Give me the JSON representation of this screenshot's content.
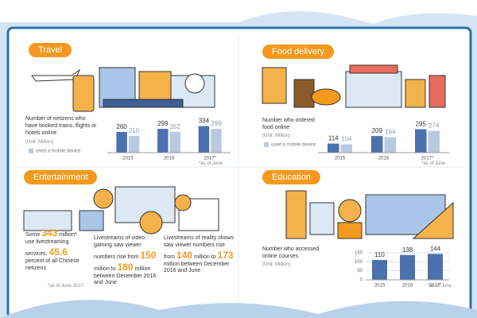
{
  "panels": {
    "travel": "Travel",
    "food": "Food delivery",
    "entertainment": "Entertainment",
    "education": "Education"
  },
  "entertainment": {
    "facts": [
      {
        "parts": [
          "Some",
          "343",
          "million*",
          "use livestreaming services,",
          "45.6",
          "percent of all Chinese netizens"
        ],
        "note": "*as of June 2017"
      },
      {
        "parts": [
          "Livestreams of video gaming saw viewer numbers rise from",
          "150",
          "million to",
          "180",
          "million between December 2016 and June"
        ]
      },
      {
        "parts": [
          "Livestreams of reality shows saw viewer numbers rise from",
          "140",
          "million to",
          "173",
          "million between December 2016 and June"
        ]
      }
    ]
  },
  "chart_data": [
    {
      "type": "bar",
      "title": "Number of netizens who have booked trains, flights or hotels online",
      "subtitle": "(Unit: Million)",
      "note": "*as of June",
      "categories": [
        "2015",
        "2016",
        "2017*"
      ],
      "ylim": [
        0,
        400
      ],
      "series": [
        {
          "color": "#4a72ad",
          "values": [
            260,
            299,
            334
          ]
        },
        {
          "name": "used a mobile device",
          "color": "#b9c9e2",
          "values": [
            210,
            262,
            299
          ]
        }
      ]
    },
    {
      "type": "bar",
      "title": "Number who ordered food online",
      "subtitle": "(Unit: Million)",
      "note": "*as of June",
      "categories": [
        "2015",
        "2016",
        "2017*"
      ],
      "ylim": [
        0,
        400
      ],
      "series": [
        {
          "color": "#4a72ad",
          "values": [
            114,
            209,
            295
          ]
        },
        {
          "name": "used a mobile device",
          "color": "#b9c9e2",
          "values": [
            104,
            194,
            274
          ]
        }
      ]
    },
    {
      "type": "bar",
      "title": "Number who accessed online courses",
      "subtitle": "(Unit: Million)",
      "note": "*as of June",
      "categories": [
        "2015",
        "2016",
        "2017*"
      ],
      "ylim": [
        0,
        150
      ],
      "yticks": [
        0,
        50,
        100,
        150
      ],
      "series": [
        {
          "color": "#4a72ad",
          "values": [
            110,
            138,
            144
          ]
        }
      ]
    }
  ]
}
